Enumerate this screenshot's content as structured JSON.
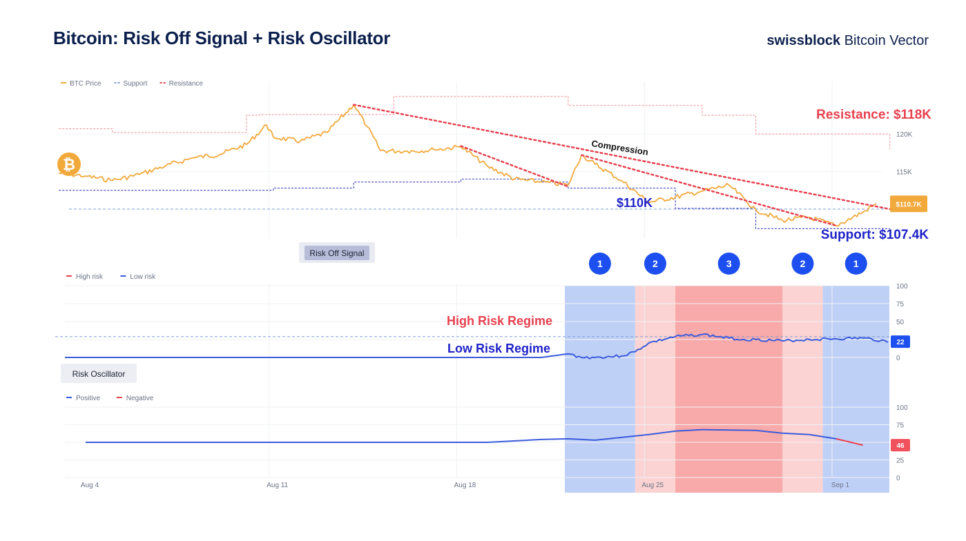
{
  "header": {
    "title": "Bitcoin: Risk Off Signal + Risk Oscillator",
    "brand_strong": "swissblock",
    "brand_light": " Bitcoin Vector"
  },
  "chart_data": [
    {
      "type": "line",
      "panel": "price",
      "legend": [
        {
          "name": "BTC Price",
          "color": "#f2a93b"
        },
        {
          "name": "Support",
          "color": "#8a9bd8"
        },
        {
          "name": "Resistance",
          "color": "#e8414f"
        }
      ],
      "y_ticks": [
        {
          "value": 120000,
          "label": "120K"
        },
        {
          "value": 115000,
          "label": "115K"
        }
      ],
      "ylim": [
        105500,
        127000
      ],
      "x_range": [
        "2025-08-03",
        "2025-09-03"
      ],
      "btc_price": {
        "x": [
          "2025-08-03",
          "2025-08-04",
          "2025-08-05",
          "2025-08-06",
          "2025-08-07",
          "2025-08-08",
          "2025-08-09",
          "2025-08-10",
          "2025-08-10T18",
          "2025-08-11",
          "2025-08-12",
          "2025-08-13",
          "2025-08-14",
          "2025-08-14T12",
          "2025-08-15",
          "2025-08-16",
          "2025-08-17",
          "2025-08-18",
          "2025-08-19",
          "2025-08-20",
          "2025-08-21",
          "2025-08-22",
          "2025-08-22T12",
          "2025-08-23",
          "2025-08-24",
          "2025-08-25",
          "2025-08-26",
          "2025-08-27",
          "2025-08-28",
          "2025-08-29",
          "2025-08-30",
          "2025-08-31",
          "2025-09-01",
          "2025-09-02",
          "2025-09-02T12"
        ],
        "y": [
          114800,
          114400,
          113800,
          114600,
          115800,
          116800,
          117300,
          118600,
          121200,
          119600,
          119000,
          120200,
          123900,
          121000,
          117800,
          117700,
          117900,
          118300,
          115700,
          114000,
          113600,
          113200,
          117200,
          116000,
          113800,
          110900,
          111600,
          112400,
          113200,
          109900,
          108500,
          108900,
          107800,
          109600,
          110700
        ]
      },
      "resistance": {
        "x": [
          "2025-08-03",
          "2025-08-05",
          "2025-08-08",
          "2025-08-10",
          "2025-08-10T12",
          "2025-08-14",
          "2025-08-15T12",
          "2025-08-21",
          "2025-08-22",
          "2025-08-26",
          "2025-08-27",
          "2025-08-28",
          "2025-08-29",
          "2025-09-03"
        ],
        "y": [
          120700,
          120200,
          120200,
          122500,
          122600,
          122600,
          125000,
          125000,
          123800,
          123800,
          122500,
          122500,
          120000,
          118000
        ]
      },
      "support": {
        "x": [
          "2025-08-03",
          "2025-08-08",
          "2025-08-11",
          "2025-08-14",
          "2025-08-18",
          "2025-08-21",
          "2025-08-22",
          "2025-08-25T12",
          "2025-08-26",
          "2025-08-28",
          "2025-08-29",
          "2025-09-03"
        ],
        "y": [
          112500,
          112500,
          112800,
          113600,
          114000,
          113600,
          112800,
          112800,
          110100,
          110100,
          107400,
          107400
        ]
      },
      "levels": [
        {
          "label": "$110K",
          "value": 110000
        }
      ],
      "annotations": {
        "resistance_label": "Resistance: $118K",
        "support_label": "Support: $107.4K",
        "compression_label": "Compression",
        "last_price_label": "$110.7K",
        "last_price_value": 110700
      },
      "trendlines": [
        {
          "from": [
            "2025-08-14",
            123900
          ],
          "to": [
            "2025-09-03",
            110000
          ]
        },
        {
          "from": [
            "2025-08-18",
            118400
          ],
          "to": [
            "2025-08-22",
            113000
          ]
        },
        {
          "from": [
            "2025-08-22T12",
            117200
          ],
          "to": [
            "2025-09-01",
            107800
          ]
        }
      ]
    },
    {
      "type": "line",
      "panel": "risk-off-signal",
      "title": "Risk Off Signal",
      "legend": [
        {
          "name": "High risk",
          "color": "#e8414f"
        },
        {
          "name": "Low risk",
          "color": "#3a5bdb"
        }
      ],
      "y_ticks": [
        100,
        75,
        50,
        25,
        0
      ],
      "ylim": [
        0,
        100
      ],
      "regime_labels": {
        "high": "High Risk Regime",
        "low": "Low Risk Regime"
      },
      "threshold": 29,
      "last_value_label": "22",
      "last_value": 22,
      "x": [
        "2025-08-03",
        "2025-08-21",
        "2025-08-22",
        "2025-08-22T12",
        "2025-08-23",
        "2025-08-24",
        "2025-08-24T12",
        "2025-08-25",
        "2025-08-26",
        "2025-08-27",
        "2025-08-28",
        "2025-08-28T12",
        "2025-08-29",
        "2025-08-30",
        "2025-08-31",
        "2025-09-01",
        "2025-09-02",
        "2025-09-03"
      ],
      "y": [
        0,
        0,
        5,
        0,
        0,
        2,
        8,
        20,
        29,
        32,
        27,
        25,
        25,
        23,
        25,
        26,
        27,
        22
      ]
    },
    {
      "type": "line",
      "panel": "risk-oscillator",
      "title": "Risk Oscillator",
      "legend": [
        {
          "name": "Positive",
          "color": "#3a5bdb"
        },
        {
          "name": "Negative",
          "color": "#e8414f"
        }
      ],
      "y_ticks": [
        100,
        75,
        50,
        25,
        0
      ],
      "ylim": [
        0,
        100
      ],
      "last_value_label": "46",
      "last_value": 46,
      "x": [
        "2025-08-04",
        "2025-08-19",
        "2025-08-21",
        "2025-08-22",
        "2025-08-23",
        "2025-08-25",
        "2025-08-26",
        "2025-08-27",
        "2025-08-29",
        "2025-08-30",
        "2025-08-31",
        "2025-09-01",
        "2025-09-02"
      ],
      "y": [
        50,
        50,
        54,
        55,
        53,
        61,
        66,
        68,
        67,
        63,
        61,
        55,
        46
      ]
    },
    {
      "type": "phases",
      "x_ticks": [
        {
          "label": "Aug 4",
          "x": "2025-08-04"
        },
        {
          "label": "Aug 11",
          "x": "2025-08-11"
        },
        {
          "label": "Aug 18",
          "x": "2025-08-18"
        },
        {
          "label": "Aug 25",
          "x": "2025-08-25"
        },
        {
          "label": "Sep 1",
          "x": "2025-09-01"
        }
      ],
      "phases": [
        {
          "label": "1",
          "start": "2025-08-21",
          "end": "2025-08-24T12",
          "color": "#bfd0f7"
        },
        {
          "label": "2",
          "start": "2025-08-24T12",
          "end": "2025-08-26",
          "color": "#fbd3d3"
        },
        {
          "label": "3",
          "start": "2025-08-26",
          "end": "2025-08-30",
          "color": "#f8a9a9"
        },
        {
          "label": "2",
          "start": "2025-08-30",
          "end": "2025-08-31T12",
          "color": "#fbd3d3"
        },
        {
          "label": "1",
          "start": "2025-08-31T12",
          "end": "2025-09-03T12",
          "color": "#bfd0f7"
        }
      ]
    }
  ]
}
